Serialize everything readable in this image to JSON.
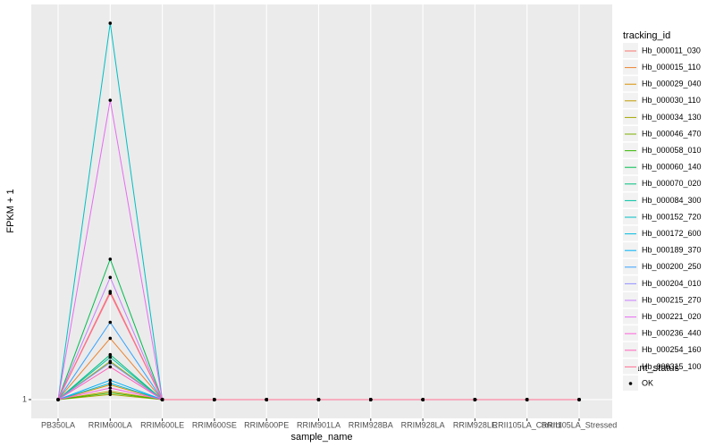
{
  "chart_data": {
    "type": "line",
    "x_label": "sample_name",
    "y_label": "FPKM + 1",
    "log_scale": true,
    "grid": true,
    "ylim": [
      0.896,
      10.04
    ],
    "yticks": [
      1
    ],
    "legend_title": "tracking_id",
    "shape_legend": {
      "title": "quant_status",
      "labels": [
        "OK"
      ]
    },
    "categories": [
      "PB350LA",
      "RRIM600LA",
      "RRIM600LE",
      "RRIM600SE",
      "RRIM600PE",
      "RRIM901LA",
      "RRIM928BA",
      "RRIM928LA",
      "RRIM928LE",
      "RRII105LA_Control",
      "RRII105LA_Stressed"
    ],
    "series": [
      {
        "name": "Hb_000011_030",
        "color": "#F8766D",
        "values": [
          1,
          1.88,
          1,
          1,
          1,
          1,
          1,
          1,
          1,
          1,
          1
        ]
      },
      {
        "name": "Hb_000015_110",
        "color": "#EA8331",
        "values": [
          1,
          1.43,
          1,
          1,
          1,
          1,
          1,
          1,
          1,
          1,
          1
        ]
      },
      {
        "name": "Hb_000029_040",
        "color": "#D89000",
        "values": [
          1,
          1.09,
          1,
          1,
          1,
          1,
          1,
          1,
          1,
          1,
          1
        ]
      },
      {
        "name": "Hb_000030_110",
        "color": "#C09B00",
        "values": [
          1,
          1.05,
          1,
          1,
          1,
          1,
          1,
          1,
          1,
          1,
          1
        ]
      },
      {
        "name": "Hb_000034_130",
        "color": "#A3A500",
        "values": [
          1,
          1.03,
          1,
          1,
          1,
          1,
          1,
          1,
          1,
          1,
          1
        ]
      },
      {
        "name": "Hb_000046_470",
        "color": "#7CAE00",
        "values": [
          1,
          1.25,
          1,
          1,
          1,
          1,
          1,
          1,
          1,
          1,
          1
        ]
      },
      {
        "name": "Hb_000058_010",
        "color": "#39B600",
        "values": [
          1,
          1.04,
          1,
          1,
          1,
          1,
          1,
          1,
          1,
          1,
          1
        ]
      },
      {
        "name": "Hb_000060_140",
        "color": "#00BB4E",
        "values": [
          1,
          2.27,
          1,
          1,
          1,
          1,
          1,
          1,
          1,
          1,
          1
        ]
      },
      {
        "name": "Hb_000070_020",
        "color": "#00BF7D",
        "values": [
          1,
          1.3,
          1,
          1,
          1,
          1,
          1,
          1,
          1,
          1,
          1
        ]
      },
      {
        "name": "Hb_000084_300",
        "color": "#00C1A3",
        "values": [
          1,
          1.28,
          1,
          1,
          1,
          1,
          1,
          1,
          1,
          1,
          1
        ]
      },
      {
        "name": "Hb_000152_720",
        "color": "#00BFC4",
        "values": [
          1,
          9.0,
          1,
          1,
          1,
          1,
          1,
          1,
          1,
          1,
          1
        ]
      },
      {
        "name": "Hb_000172_600",
        "color": "#00BAE0",
        "values": [
          1,
          1.1,
          1,
          1,
          1,
          1,
          1,
          1,
          1,
          1,
          1
        ]
      },
      {
        "name": "Hb_000189_370",
        "color": "#00B0F6",
        "values": [
          1,
          1.12,
          1,
          1,
          1,
          1,
          1,
          1,
          1,
          1,
          1
        ]
      },
      {
        "name": "Hb_000200_250",
        "color": "#35A2FF",
        "values": [
          1,
          1.57,
          1,
          1,
          1,
          1,
          1,
          1,
          1,
          1,
          1
        ]
      },
      {
        "name": "Hb_000204_010",
        "color": "#9590FF",
        "values": [
          1,
          1.24,
          1,
          1,
          1,
          1,
          1,
          1,
          1,
          1,
          1
        ]
      },
      {
        "name": "Hb_000215_270",
        "color": "#C77CFF",
        "values": [
          1,
          2.04,
          1,
          1,
          1,
          1,
          1,
          1,
          1,
          1,
          1
        ]
      },
      {
        "name": "Hb_000221_020",
        "color": "#E76BF3",
        "values": [
          1,
          5.74,
          1,
          1,
          1,
          1,
          1,
          1,
          1,
          1,
          1
        ]
      },
      {
        "name": "Hb_000236_440",
        "color": "#FA62DB",
        "values": [
          1,
          1.07,
          1,
          1,
          1,
          1,
          1,
          1,
          1,
          1,
          1
        ]
      },
      {
        "name": "Hb_000254_160",
        "color": "#FF62BC",
        "values": [
          1,
          1.21,
          1,
          1,
          1,
          1,
          1,
          1,
          1,
          1,
          1
        ]
      },
      {
        "name": "Hb_000315_100",
        "color": "#FF6C91",
        "values": [
          1,
          1.86,
          1,
          1,
          1,
          1,
          1,
          1,
          1,
          1,
          1
        ]
      }
    ]
  }
}
